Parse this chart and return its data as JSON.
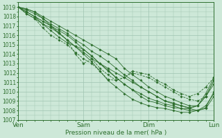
{
  "xlabel": "Pression niveau de la mer( hPa )",
  "ylim": [
    1007,
    1019.5
  ],
  "xlim": [
    0,
    72
  ],
  "bg_color": "#cde8d8",
  "grid_color": "#9ec4b0",
  "line_color": "#2d6e2d",
  "day_labels": [
    "Ven",
    "Sam",
    "Dim",
    "Lun"
  ],
  "day_positions": [
    0,
    24,
    48,
    72
  ],
  "yticks": [
    1007,
    1008,
    1009,
    1010,
    1011,
    1012,
    1013,
    1014,
    1015,
    1016,
    1017,
    1018,
    1019
  ],
  "series": [
    {
      "x": [
        0,
        3,
        6,
        9,
        12,
        15,
        18,
        21,
        24,
        27,
        30,
        33,
        36,
        39,
        42,
        45,
        48,
        51,
        54,
        57,
        60,
        63,
        66,
        69,
        72
      ],
      "y": [
        1019,
        1018.8,
        1018.5,
        1018.0,
        1017.5,
        1017.0,
        1016.5,
        1016.0,
        1015.5,
        1015.0,
        1014.5,
        1014.0,
        1013.5,
        1012.5,
        1011.8,
        1011.2,
        1010.5,
        1010.0,
        1009.5,
        1009.2,
        1008.8,
        1008.5,
        1008.5,
        1009.5,
        1011.2
      ],
      "dashed": false
    },
    {
      "x": [
        0,
        3,
        6,
        9,
        12,
        15,
        18,
        21,
        24,
        27,
        30,
        33,
        36,
        39,
        42,
        45,
        48,
        51,
        54,
        57,
        60,
        63,
        66,
        69,
        72
      ],
      "y": [
        1019,
        1018.7,
        1018.3,
        1017.8,
        1017.2,
        1016.7,
        1016.2,
        1015.5,
        1015.0,
        1014.3,
        1013.8,
        1013.2,
        1012.5,
        1011.8,
        1011.2,
        1010.5,
        1010.0,
        1009.5,
        1009.0,
        1008.8,
        1008.5,
        1008.3,
        1008.5,
        1009.8,
        1011.5
      ],
      "dashed": false
    },
    {
      "x": [
        0,
        3,
        6,
        9,
        12,
        15,
        18,
        21,
        24,
        27,
        30,
        33,
        36,
        39,
        42,
        45,
        48,
        51,
        54,
        57,
        60,
        63,
        66,
        69,
        72
      ],
      "y": [
        1019,
        1018.5,
        1018.0,
        1017.5,
        1017.0,
        1016.5,
        1016.0,
        1015.3,
        1014.5,
        1013.8,
        1013.0,
        1012.3,
        1011.5,
        1010.8,
        1010.2,
        1009.5,
        1009.0,
        1008.8,
        1008.5,
        1008.3,
        1008.2,
        1008.2,
        1008.5,
        1009.5,
        1010.8
      ],
      "dashed": false
    },
    {
      "x": [
        0,
        3,
        6,
        9,
        12,
        15,
        18,
        21,
        24,
        27,
        30,
        33,
        36,
        39,
        42,
        45,
        48,
        51,
        54,
        57,
        60,
        63,
        66,
        69,
        72
      ],
      "y": [
        1019,
        1018.3,
        1017.8,
        1017.2,
        1016.8,
        1016.2,
        1015.5,
        1014.8,
        1014.0,
        1013.2,
        1012.2,
        1011.2,
        1010.5,
        1009.8,
        1009.2,
        1008.8,
        1008.5,
        1008.3,
        1008.2,
        1008.0,
        1007.8,
        1007.8,
        1008.0,
        1008.5,
        1009.8
      ],
      "dashed": false
    },
    {
      "x": [
        0,
        3,
        6,
        9,
        12,
        15,
        18,
        21,
        24,
        27,
        30,
        33,
        36,
        39,
        42,
        45,
        48,
        51,
        54,
        57,
        60,
        63,
        66,
        69,
        72
      ],
      "y": [
        1019,
        1018.8,
        1018.5,
        1017.8,
        1017.0,
        1016.2,
        1015.5,
        1014.8,
        1014.2,
        1013.5,
        1013.0,
        1012.5,
        1012.0,
        1011.5,
        1011.0,
        1010.5,
        1010.0,
        1009.5,
        1009.0,
        1008.7,
        1008.5,
        1008.2,
        1008.0,
        1008.2,
        1009.5
      ],
      "dashed": false
    },
    {
      "x": [
        0,
        3,
        6,
        9,
        12,
        15,
        18,
        24,
        27,
        30,
        33,
        36,
        39,
        42,
        45,
        48,
        51,
        54,
        57,
        60,
        63,
        66,
        69,
        72
      ],
      "y": [
        1019,
        1018.5,
        1018.0,
        1017.2,
        1016.5,
        1015.8,
        1015.2,
        1014.5,
        1013.8,
        1013.0,
        1012.2,
        1011.5,
        1010.8,
        1010.2,
        1009.8,
        1009.3,
        1009.0,
        1008.7,
        1008.5,
        1008.2,
        1008.0,
        1008.0,
        1008.3,
        1010.0
      ],
      "dashed": false
    },
    {
      "x": [
        0,
        3,
        6,
        9,
        12,
        15,
        18,
        21,
        24,
        27,
        30,
        33,
        36,
        39,
        42,
        48,
        51,
        54,
        57,
        60,
        63,
        66,
        69,
        72
      ],
      "y": [
        1019,
        1018.5,
        1018.0,
        1017.5,
        1017.0,
        1016.3,
        1015.5,
        1014.0,
        1013.0,
        1013.5,
        1012.5,
        1011.8,
        1011.2,
        1011.5,
        1012.0,
        1011.5,
        1011.0,
        1010.5,
        1010.0,
        1009.5,
        1009.2,
        1009.0,
        1009.5,
        1011.2
      ],
      "dashed": true
    },
    {
      "x": [
        0,
        3,
        6,
        9,
        12,
        15,
        18,
        21,
        24,
        27,
        30,
        33,
        36,
        39,
        42,
        45,
        48,
        51,
        54,
        57,
        60,
        63,
        66,
        69,
        72
      ],
      "y": [
        1019,
        1018.3,
        1017.8,
        1016.8,
        1016.0,
        1015.5,
        1015.0,
        1014.2,
        1013.5,
        1013.0,
        1012.2,
        1011.3,
        1011.2,
        1011.5,
        1012.2,
        1012.0,
        1011.8,
        1011.2,
        1010.8,
        1010.2,
        1009.8,
        1009.5,
        1009.8,
        1010.5,
        1011.5
      ],
      "dashed": true
    }
  ]
}
